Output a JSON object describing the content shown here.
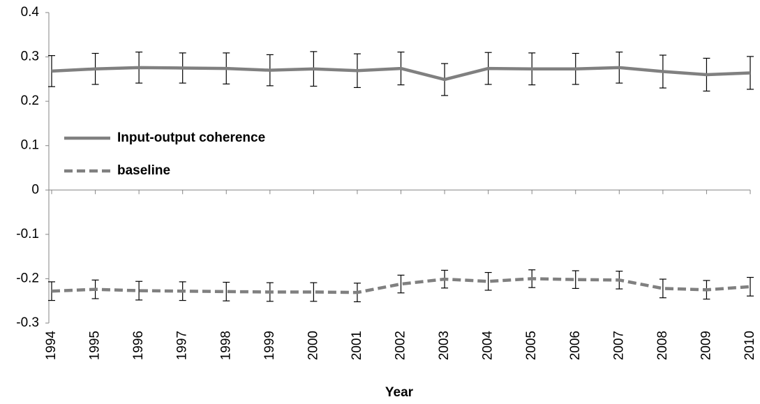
{
  "chart_data": {
    "type": "line",
    "x_label": "Year",
    "categories": [
      "1994",
      "1995",
      "1996",
      "1997",
      "1998",
      "1999",
      "2000",
      "2001",
      "2002",
      "2003",
      "2004",
      "2005",
      "2006",
      "2007",
      "2008",
      "2009",
      "2010"
    ],
    "series": [
      {
        "name": "Input-output coherence",
        "color": "#808080",
        "dash": false,
        "values": [
          0.268,
          0.273,
          0.276,
          0.275,
          0.274,
          0.27,
          0.273,
          0.269,
          0.274,
          0.249,
          0.274,
          0.273,
          0.273,
          0.276,
          0.267,
          0.26,
          0.264
        ],
        "errors": [
          0.035,
          0.035,
          0.035,
          0.034,
          0.035,
          0.035,
          0.039,
          0.038,
          0.037,
          0.036,
          0.036,
          0.036,
          0.035,
          0.035,
          0.037,
          0.037,
          0.037
        ]
      },
      {
        "name": "baseline",
        "color": "#808080",
        "dash": true,
        "values": [
          -0.228,
          -0.224,
          -0.227,
          -0.228,
          -0.229,
          -0.23,
          -0.23,
          -0.231,
          -0.212,
          -0.201,
          -0.206,
          -0.2,
          -0.202,
          -0.203,
          -0.222,
          -0.225,
          -0.218
        ],
        "errors": [
          0.021,
          0.021,
          0.021,
          0.021,
          0.021,
          0.021,
          0.021,
          0.021,
          0.02,
          0.02,
          0.02,
          0.02,
          0.02,
          0.02,
          0.021,
          0.021,
          0.021
        ]
      }
    ],
    "ylim": [
      -0.3,
      0.4
    ],
    "yticks": [
      -0.3,
      -0.2,
      -0.1,
      0,
      0.1,
      0.2,
      0.3,
      0.4
    ],
    "legend": "left"
  }
}
